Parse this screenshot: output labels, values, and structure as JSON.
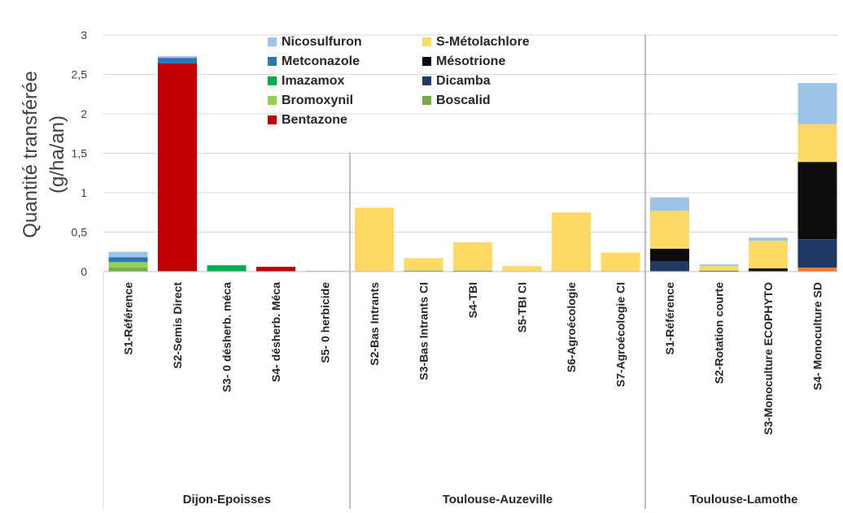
{
  "chart_data": {
    "type": "bar",
    "stacked": true,
    "ylabel_line1": "Quantité transférée",
    "ylabel_line2": "(g/ha/an)",
    "ylim": [
      0,
      3
    ],
    "y_ticks": [
      "0",
      "0,5",
      "1",
      "1,5",
      "2",
      "2,5",
      "3"
    ],
    "grid": true,
    "legend_position": "top-center",
    "groups": [
      {
        "label": "Dijon-Epoisses",
        "categories": [
          "S1-Référence",
          "S2-Semis Direct",
          "S3- 0 désherb. méca",
          "S4- désherb. Méca",
          "S5- 0 herbicide"
        ]
      },
      {
        "label": "Toulouse-Auzeville",
        "categories": [
          "S2-Bas Intrants",
          "S3-Bas Intrants CI",
          "S4-TBI",
          "S5-TBI CI",
          "S6-Agroécologie",
          "S7-Agroécologie CI"
        ]
      },
      {
        "label": "Toulouse-Lamothe",
        "categories": [
          "S1-Référence",
          "S2-Rotation courte",
          "S3-Monoculture ECOPHYTO",
          "S4- Monoculture SD"
        ]
      }
    ],
    "series": [
      {
        "name": "Bentazone",
        "color": "#c00000",
        "values": [
          0,
          2.64,
          0,
          0.06,
          0,
          0,
          0,
          0,
          0,
          0,
          0,
          0,
          0,
          0,
          0
        ]
      },
      {
        "name": "Boscalid",
        "color": "#70ad47",
        "values": [
          0.05,
          0,
          0,
          0,
          0,
          0,
          0,
          0,
          0,
          0,
          0,
          0,
          0,
          0,
          0
        ]
      },
      {
        "name": "Bromoxynil",
        "color": "#92d050",
        "values": [
          0.07,
          0,
          0,
          0,
          0,
          0,
          0,
          0,
          0,
          0,
          0,
          0,
          0,
          0,
          0
        ]
      },
      {
        "name": "Imazamox",
        "color": "#00b050",
        "values": [
          0,
          0,
          0.08,
          0,
          0,
          0,
          0,
          0,
          0,
          0,
          0,
          0,
          0,
          0,
          0
        ]
      },
      {
        "name": "Dicamba",
        "color": "#1f3864",
        "values": [
          0,
          0,
          0,
          0,
          0,
          0,
          0,
          0,
          0,
          0,
          0,
          0.13,
          0,
          0,
          0.36
        ]
      },
      {
        "name": "Metconazole",
        "color": "#2e75b6",
        "values": [
          0.06,
          0.07,
          0,
          0,
          0,
          0,
          0.01,
          0.01,
          0,
          0,
          0,
          0,
          0,
          0,
          0
        ]
      },
      {
        "name": "Mésotrione",
        "color": "#0d0d0d",
        "values": [
          0,
          0,
          0,
          0,
          0,
          0,
          0,
          0,
          0,
          0,
          0,
          0.16,
          0.01,
          0.04,
          0.98
        ]
      },
      {
        "name": "S-Métolachlore",
        "color": "#ffd966",
        "values": [
          0,
          0,
          0,
          0,
          0,
          0.81,
          0.16,
          0.36,
          0.07,
          0.75,
          0.24,
          0.48,
          0.06,
          0.35,
          0.48
        ]
      },
      {
        "name": "Nicosulfuron",
        "color": "#9dc3e6",
        "values": [
          0.07,
          0.02,
          0,
          0,
          0.01,
          0,
          0,
          0,
          0,
          0,
          0,
          0.17,
          0.02,
          0.04,
          0.52
        ]
      }
    ],
    "bottom_segment": {
      "color": "#ed7d31",
      "values": [
        0,
        0,
        0,
        0,
        0,
        0,
        0,
        0,
        0,
        0,
        0,
        0,
        0,
        0,
        0.05
      ]
    },
    "legend_order": [
      "Nicosulfuron",
      "S-Métolachlore",
      "Metconazole",
      "Mésotrione",
      "Imazamox",
      "Dicamba",
      "Bromoxynil",
      "Boscalid",
      "Bentazone"
    ]
  }
}
